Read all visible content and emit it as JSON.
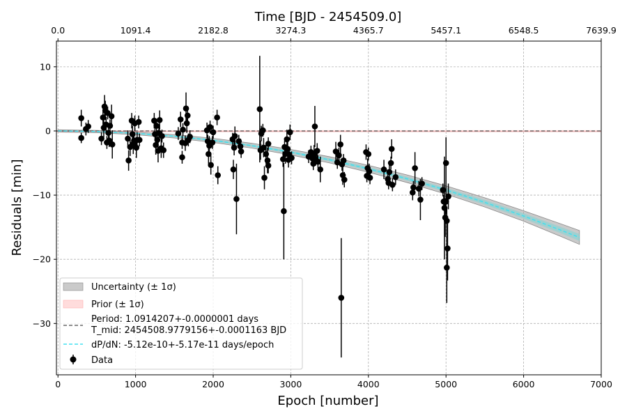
{
  "chart_data": {
    "type": "scatter",
    "top_axis": {
      "label": "Time [BJD - 2454509.0]",
      "ticks": [
        {
          "epoch": 0,
          "label": "0.0"
        },
        {
          "epoch": 1000,
          "label": "1091.4"
        },
        {
          "epoch": 2000,
          "label": "2182.8"
        },
        {
          "epoch": 3000,
          "label": "3274.3"
        },
        {
          "epoch": 4000,
          "label": "4365.7"
        },
        {
          "epoch": 5000,
          "label": "5457.1"
        },
        {
          "epoch": 6000,
          "label": "6548.5"
        },
        {
          "epoch": 7000,
          "label": "7639.9"
        }
      ]
    },
    "xlabel": "Epoch [number]",
    "ylabel": "Residuals [min]",
    "xlim": [
      -20,
      7000
    ],
    "ylim": [
      -38,
      14
    ],
    "xticks": [
      {
        "value": 0,
        "label": "0"
      },
      {
        "value": 1000,
        "label": "1000"
      },
      {
        "value": 2000,
        "label": "2000"
      },
      {
        "value": 3000,
        "label": "3000"
      },
      {
        "value": 4000,
        "label": "4000"
      },
      {
        "value": 5000,
        "label": "5000"
      },
      {
        "value": 6000,
        "label": "6000"
      },
      {
        "value": 7000,
        "label": "7000"
      }
    ],
    "yticks": [
      {
        "value": 10,
        "label": "10"
      },
      {
        "value": 0,
        "label": "0"
      },
      {
        "value": -10,
        "label": "−10"
      },
      {
        "value": -20,
        "label": "−20"
      },
      {
        "value": -30,
        "label": "−30"
      }
    ],
    "grid": true,
    "legend_position": "lower-left",
    "legend": [
      {
        "key": "uncertainty",
        "label": "Uncertainty (± 1σ)",
        "color": "#9e9e9e"
      },
      {
        "key": "prior",
        "label": "Prior (± 1σ)",
        "color": "#ffc0c0"
      },
      {
        "key": "period",
        "label": "Period: 1.0914207+-0.0000001 days",
        "label2": "T_mid: 2454508.9779156+-0.0001163 BJD",
        "color": "#666666"
      },
      {
        "key": "dpdn",
        "label": "dP/dN: -5.12e-10+-5.17e-11 days/epoch",
        "color": "#40e0f0"
      },
      {
        "key": "data",
        "label": "Data",
        "color": "#000000"
      }
    ],
    "model": {
      "period_line": {
        "x": [
          -20,
          7000
        ],
        "y": [
          0,
          0
        ],
        "color": "#666666"
      },
      "prior_band": {
        "x": [
          -20,
          7000
        ],
        "y": [
          0,
          0
        ],
        "halfwidth": 0.12,
        "color": "#ffc8c8"
      },
      "decay_curve": {
        "x": [
          0,
          500,
          1000,
          1500,
          2000,
          2500,
          3000,
          3500,
          4000,
          4500,
          5000,
          5500,
          6000,
          6500,
          6720
        ],
        "y": [
          0,
          -0.09,
          -0.37,
          -0.83,
          -1.47,
          -2.3,
          -3.31,
          -4.5,
          -5.89,
          -7.45,
          -9.2,
          -11.13,
          -13.25,
          -15.55,
          -16.6
        ],
        "sigma": [
          0.1,
          0.1,
          0.12,
          0.15,
          0.18,
          0.21,
          0.24,
          0.27,
          0.3,
          0.33,
          0.36,
          0.4,
          0.45,
          0.55,
          0.6
        ],
        "color": "#40e0f0"
      }
    },
    "series": [
      {
        "name": "Data",
        "points": [
          {
            "x": 300,
            "y": 2.0,
            "err": 1.3
          },
          {
            "x": 300,
            "y": -1.1,
            "err": 0.8
          },
          {
            "x": 360,
            "y": 0.3,
            "err": 1.0
          },
          {
            "x": 390,
            "y": 0.7,
            "err": 1.0
          },
          {
            "x": 560,
            "y": -1.2,
            "err": 1.0
          },
          {
            "x": 580,
            "y": 2.1,
            "err": 1.2
          },
          {
            "x": 590,
            "y": 0.5,
            "err": 1.5
          },
          {
            "x": 600,
            "y": 3.8,
            "err": 1.8
          },
          {
            "x": 610,
            "y": 3.2,
            "err": 1.5
          },
          {
            "x": 620,
            "y": 1.0,
            "err": 1.2
          },
          {
            "x": 630,
            "y": -1.8,
            "err": 1.0
          },
          {
            "x": 640,
            "y": 2.8,
            "err": 1.0
          },
          {
            "x": 650,
            "y": -0.3,
            "err": 1.2
          },
          {
            "x": 660,
            "y": -1.5,
            "err": 1.0
          },
          {
            "x": 670,
            "y": 0.8,
            "err": 1.0
          },
          {
            "x": 690,
            "y": 2.3,
            "err": 1.8
          },
          {
            "x": 700,
            "y": -2.1,
            "err": 2.2
          },
          {
            "x": 900,
            "y": -1.2,
            "err": 1.3
          },
          {
            "x": 910,
            "y": -4.6,
            "err": 1.6
          },
          {
            "x": 930,
            "y": -2.5,
            "err": 1.4
          },
          {
            "x": 950,
            "y": 1.6,
            "err": 1.2
          },
          {
            "x": 960,
            "y": -0.5,
            "err": 1.3
          },
          {
            "x": 970,
            "y": -2.0,
            "err": 1.6
          },
          {
            "x": 980,
            "y": -1.5,
            "err": 1.0
          },
          {
            "x": 990,
            "y": 1.2,
            "err": 1.2
          },
          {
            "x": 1010,
            "y": -2.6,
            "err": 1.6
          },
          {
            "x": 1020,
            "y": -1.4,
            "err": 1.2
          },
          {
            "x": 1040,
            "y": 1.4,
            "err": 1.0
          },
          {
            "x": 1050,
            "y": -1.4,
            "err": 1.0
          },
          {
            "x": 1240,
            "y": 1.6,
            "err": 1.2
          },
          {
            "x": 1250,
            "y": -0.5,
            "err": 1.0
          },
          {
            "x": 1260,
            "y": -2.2,
            "err": 1.5
          },
          {
            "x": 1270,
            "y": 0.8,
            "err": 1.0
          },
          {
            "x": 1280,
            "y": -1.4,
            "err": 1.0
          },
          {
            "x": 1290,
            "y": -3.1,
            "err": 1.8
          },
          {
            "x": 1300,
            "y": -0.3,
            "err": 1.2
          },
          {
            "x": 1310,
            "y": 1.7,
            "err": 1.5
          },
          {
            "x": 1330,
            "y": -2.7,
            "err": 1.5
          },
          {
            "x": 1340,
            "y": -0.8,
            "err": 1.0
          },
          {
            "x": 1360,
            "y": -3.0,
            "err": 1.2
          },
          {
            "x": 1550,
            "y": -0.4,
            "err": 1.0
          },
          {
            "x": 1580,
            "y": 1.8,
            "err": 1.2
          },
          {
            "x": 1600,
            "y": -1.8,
            "err": 1.0
          },
          {
            "x": 1600,
            "y": -4.1,
            "err": 1.0
          },
          {
            "x": 1610,
            "y": 0.2,
            "err": 1.0
          },
          {
            "x": 1640,
            "y": -1.9,
            "err": 1.2
          },
          {
            "x": 1650,
            "y": 3.5,
            "err": 2.5
          },
          {
            "x": 1660,
            "y": 1.2,
            "err": 1.5
          },
          {
            "x": 1670,
            "y": 2.4,
            "err": 1.2
          },
          {
            "x": 1680,
            "y": -1.4,
            "err": 1.0
          },
          {
            "x": 1700,
            "y": -0.9,
            "err": 1.0
          },
          {
            "x": 1920,
            "y": 0.1,
            "err": 1.2
          },
          {
            "x": 1930,
            "y": -1.6,
            "err": 1.0
          },
          {
            "x": 1940,
            "y": -3.6,
            "err": 1.5
          },
          {
            "x": 1950,
            "y": -2.3,
            "err": 1.5
          },
          {
            "x": 1960,
            "y": 0.6,
            "err": 1.0
          },
          {
            "x": 1970,
            "y": -5.3,
            "err": 1.5
          },
          {
            "x": 1990,
            "y": -1.8,
            "err": 1.0
          },
          {
            "x": 2000,
            "y": -0.2,
            "err": 1.0
          },
          {
            "x": 2050,
            "y": 2.1,
            "err": 1.2
          },
          {
            "x": 2060,
            "y": -6.9,
            "err": 1.4
          },
          {
            "x": 2250,
            "y": -1.3,
            "err": 1.0
          },
          {
            "x": 2260,
            "y": -6.0,
            "err": 1.5
          },
          {
            "x": 2270,
            "y": -2.6,
            "err": 1.2
          },
          {
            "x": 2280,
            "y": -0.8,
            "err": 1.5
          },
          {
            "x": 2300,
            "y": -10.6,
            "err": 5.5
          },
          {
            "x": 2330,
            "y": -1.6,
            "err": 1.0
          },
          {
            "x": 2350,
            "y": -2.4,
            "err": 1.2
          },
          {
            "x": 2360,
            "y": -3.2,
            "err": 1.0
          },
          {
            "x": 2600,
            "y": 3.4,
            "err": 8.3
          },
          {
            "x": 2610,
            "y": -3.0,
            "err": 1.5
          },
          {
            "x": 2620,
            "y": -0.4,
            "err": 1.2
          },
          {
            "x": 2640,
            "y": 0.1,
            "err": 1.0
          },
          {
            "x": 2650,
            "y": -2.6,
            "err": 1.5
          },
          {
            "x": 2660,
            "y": -7.3,
            "err": 1.8
          },
          {
            "x": 2680,
            "y": -3.6,
            "err": 1.5
          },
          {
            "x": 2700,
            "y": -4.6,
            "err": 2.0
          },
          {
            "x": 2710,
            "y": -5.4,
            "err": 1.2
          },
          {
            "x": 2710,
            "y": -2.0,
            "err": 1.0
          },
          {
            "x": 2900,
            "y": -4.4,
            "err": 1.2
          },
          {
            "x": 2910,
            "y": -12.5,
            "err": 7.5
          },
          {
            "x": 2920,
            "y": -2.5,
            "err": 1.0
          },
          {
            "x": 2930,
            "y": -3.6,
            "err": 1.5
          },
          {
            "x": 2950,
            "y": -1.3,
            "err": 1.5
          },
          {
            "x": 2960,
            "y": -2.8,
            "err": 1.2
          },
          {
            "x": 2970,
            "y": -4.5,
            "err": 1.2
          },
          {
            "x": 2980,
            "y": -3.7,
            "err": 1.0
          },
          {
            "x": 2990,
            "y": -0.2,
            "err": 1.2
          },
          {
            "x": 3010,
            "y": -4.2,
            "err": 1.0
          },
          {
            "x": 3230,
            "y": -4.0,
            "err": 1.0
          },
          {
            "x": 3260,
            "y": -3.3,
            "err": 1.0
          },
          {
            "x": 3280,
            "y": -4.3,
            "err": 1.2
          },
          {
            "x": 3290,
            "y": -5.1,
            "err": 1.0
          },
          {
            "x": 3300,
            "y": -3.7,
            "err": 1.5
          },
          {
            "x": 3310,
            "y": 0.7,
            "err": 3.2
          },
          {
            "x": 3320,
            "y": -4.4,
            "err": 1.0
          },
          {
            "x": 3340,
            "y": -3.1,
            "err": 1.2
          },
          {
            "x": 3350,
            "y": -4.8,
            "err": 1.0
          },
          {
            "x": 3380,
            "y": -6.0,
            "err": 2.0
          },
          {
            "x": 3580,
            "y": -3.2,
            "err": 1.5
          },
          {
            "x": 3600,
            "y": -4.9,
            "err": 1.0
          },
          {
            "x": 3620,
            "y": -3.8,
            "err": 1.2
          },
          {
            "x": 3640,
            "y": -2.1,
            "err": 1.5
          },
          {
            "x": 3650,
            "y": -26.0,
            "err": 9.3
          },
          {
            "x": 3660,
            "y": -5.2,
            "err": 1.0
          },
          {
            "x": 3670,
            "y": -6.9,
            "err": 1.5
          },
          {
            "x": 3680,
            "y": -4.6,
            "err": 1.0
          },
          {
            "x": 3690,
            "y": -7.6,
            "err": 1.2
          },
          {
            "x": 3970,
            "y": -3.3,
            "err": 1.2
          },
          {
            "x": 3980,
            "y": -7.0,
            "err": 1.0
          },
          {
            "x": 3990,
            "y": -5.8,
            "err": 1.5
          },
          {
            "x": 4000,
            "y": -3.6,
            "err": 1.0
          },
          {
            "x": 4010,
            "y": -6.3,
            "err": 1.2
          },
          {
            "x": 4020,
            "y": -7.3,
            "err": 1.0
          },
          {
            "x": 4200,
            "y": -6.0,
            "err": 1.5
          },
          {
            "x": 4250,
            "y": -7.5,
            "err": 1.0
          },
          {
            "x": 4260,
            "y": -8.1,
            "err": 1.0
          },
          {
            "x": 4270,
            "y": -6.4,
            "err": 1.5
          },
          {
            "x": 4290,
            "y": -5.0,
            "err": 1.0
          },
          {
            "x": 4300,
            "y": -2.8,
            "err": 1.5
          },
          {
            "x": 4310,
            "y": -8.4,
            "err": 1.0
          },
          {
            "x": 4350,
            "y": -7.2,
            "err": 1.2
          },
          {
            "x": 4570,
            "y": -9.6,
            "err": 1.2
          },
          {
            "x": 4580,
            "y": -8.8,
            "err": 1.0
          },
          {
            "x": 4600,
            "y": -5.8,
            "err": 2.5
          },
          {
            "x": 4650,
            "y": -9.0,
            "err": 1.2
          },
          {
            "x": 4670,
            "y": -10.7,
            "err": 3.2
          },
          {
            "x": 4690,
            "y": -8.2,
            "err": 1.0
          },
          {
            "x": 4960,
            "y": -9.2,
            "err": 1.0
          },
          {
            "x": 4970,
            "y": -11.0,
            "err": 1.0
          },
          {
            "x": 4980,
            "y": -12.0,
            "err": 8.0
          },
          {
            "x": 4990,
            "y": -13.5,
            "err": 3.0
          },
          {
            "x": 5000,
            "y": -5.0,
            "err": 4.0
          },
          {
            "x": 5000,
            "y": -11.0,
            "err": 2.0
          },
          {
            "x": 5010,
            "y": -14.0,
            "err": 2.0
          },
          {
            "x": 5010,
            "y": -21.3,
            "err": 5.5
          },
          {
            "x": 5020,
            "y": -18.3,
            "err": 5.0
          },
          {
            "x": 5030,
            "y": -10.2,
            "err": 2.0
          }
        ]
      }
    ]
  }
}
